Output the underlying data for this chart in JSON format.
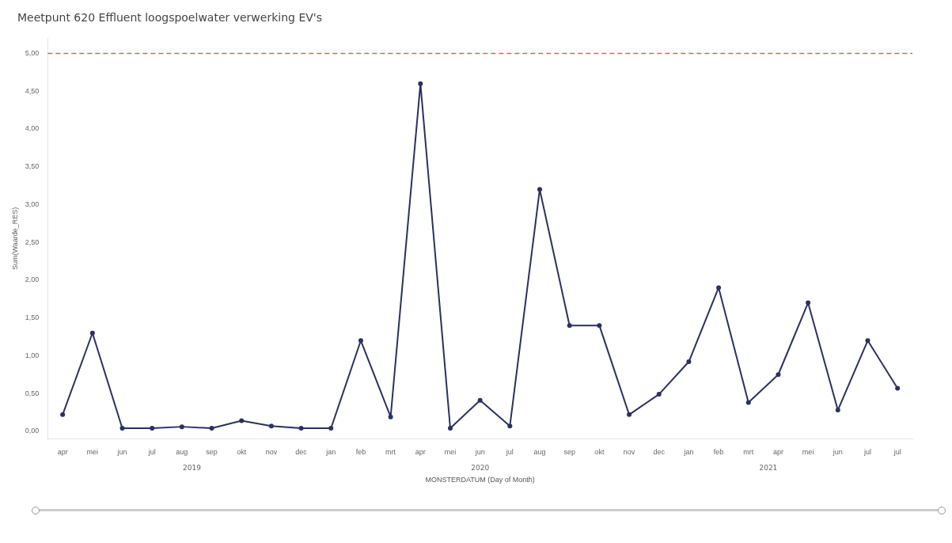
{
  "chart_data": {
    "type": "line",
    "title": "Meetpunt 620 Effluent loogspoelwater verwerking EV's",
    "xlabel": "MONSTERDATUM (Day of Month)",
    "ylabel": "Sum(Waarde_RES)",
    "categories": [
      "apr",
      "mei",
      "jun",
      "jul",
      "aug",
      "sep",
      "okt",
      "nov",
      "dec",
      "jan",
      "feb",
      "mrt",
      "apr",
      "mei",
      "jun",
      "jul",
      "aug",
      "sep",
      "okt",
      "nov",
      "dec",
      "jan",
      "feb",
      "mrt",
      "apr",
      "mei",
      "jun",
      "jul",
      "jul"
    ],
    "series": [
      {
        "color": "#2b3160",
        "values": [
          0.22,
          1.3,
          0.04,
          0.04,
          0.06,
          0.04,
          0.14,
          0.07,
          0.04,
          0.04,
          1.2,
          0.19,
          4.6,
          0.04,
          0.41,
          0.07,
          3.2,
          1.4,
          1.4,
          0.22,
          0.49,
          0.92,
          1.9,
          0.38,
          0.75,
          1.7,
          0.28,
          1.2,
          0.57
        ]
      }
    ],
    "ylim": [
      -0.1,
      5.2
    ],
    "yticks": [
      {
        "value": 0,
        "label": "0,00"
      },
      {
        "value": 0.5,
        "label": "0,50"
      },
      {
        "value": 1,
        "label": "1,00"
      },
      {
        "value": 1.5,
        "label": "1,50"
      },
      {
        "value": 2,
        "label": "2,00"
      },
      {
        "value": 2.5,
        "label": "2,50"
      },
      {
        "value": 3,
        "label": "3,00"
      },
      {
        "value": 3.5,
        "label": "3,50"
      },
      {
        "value": 4,
        "label": "4,00"
      },
      {
        "value": 4.5,
        "label": "4,50"
      },
      {
        "value": 5,
        "label": "5,00"
      }
    ],
    "ref_lines": [
      {
        "axis": "y",
        "value": 5,
        "color": "#e06060",
        "line_style": "dashed"
      }
    ],
    "annotations": [
      "2019",
      "2020",
      "2021"
    ],
    "marker": "circle",
    "line_style": "solid",
    "grid": false,
    "legend": false
  }
}
